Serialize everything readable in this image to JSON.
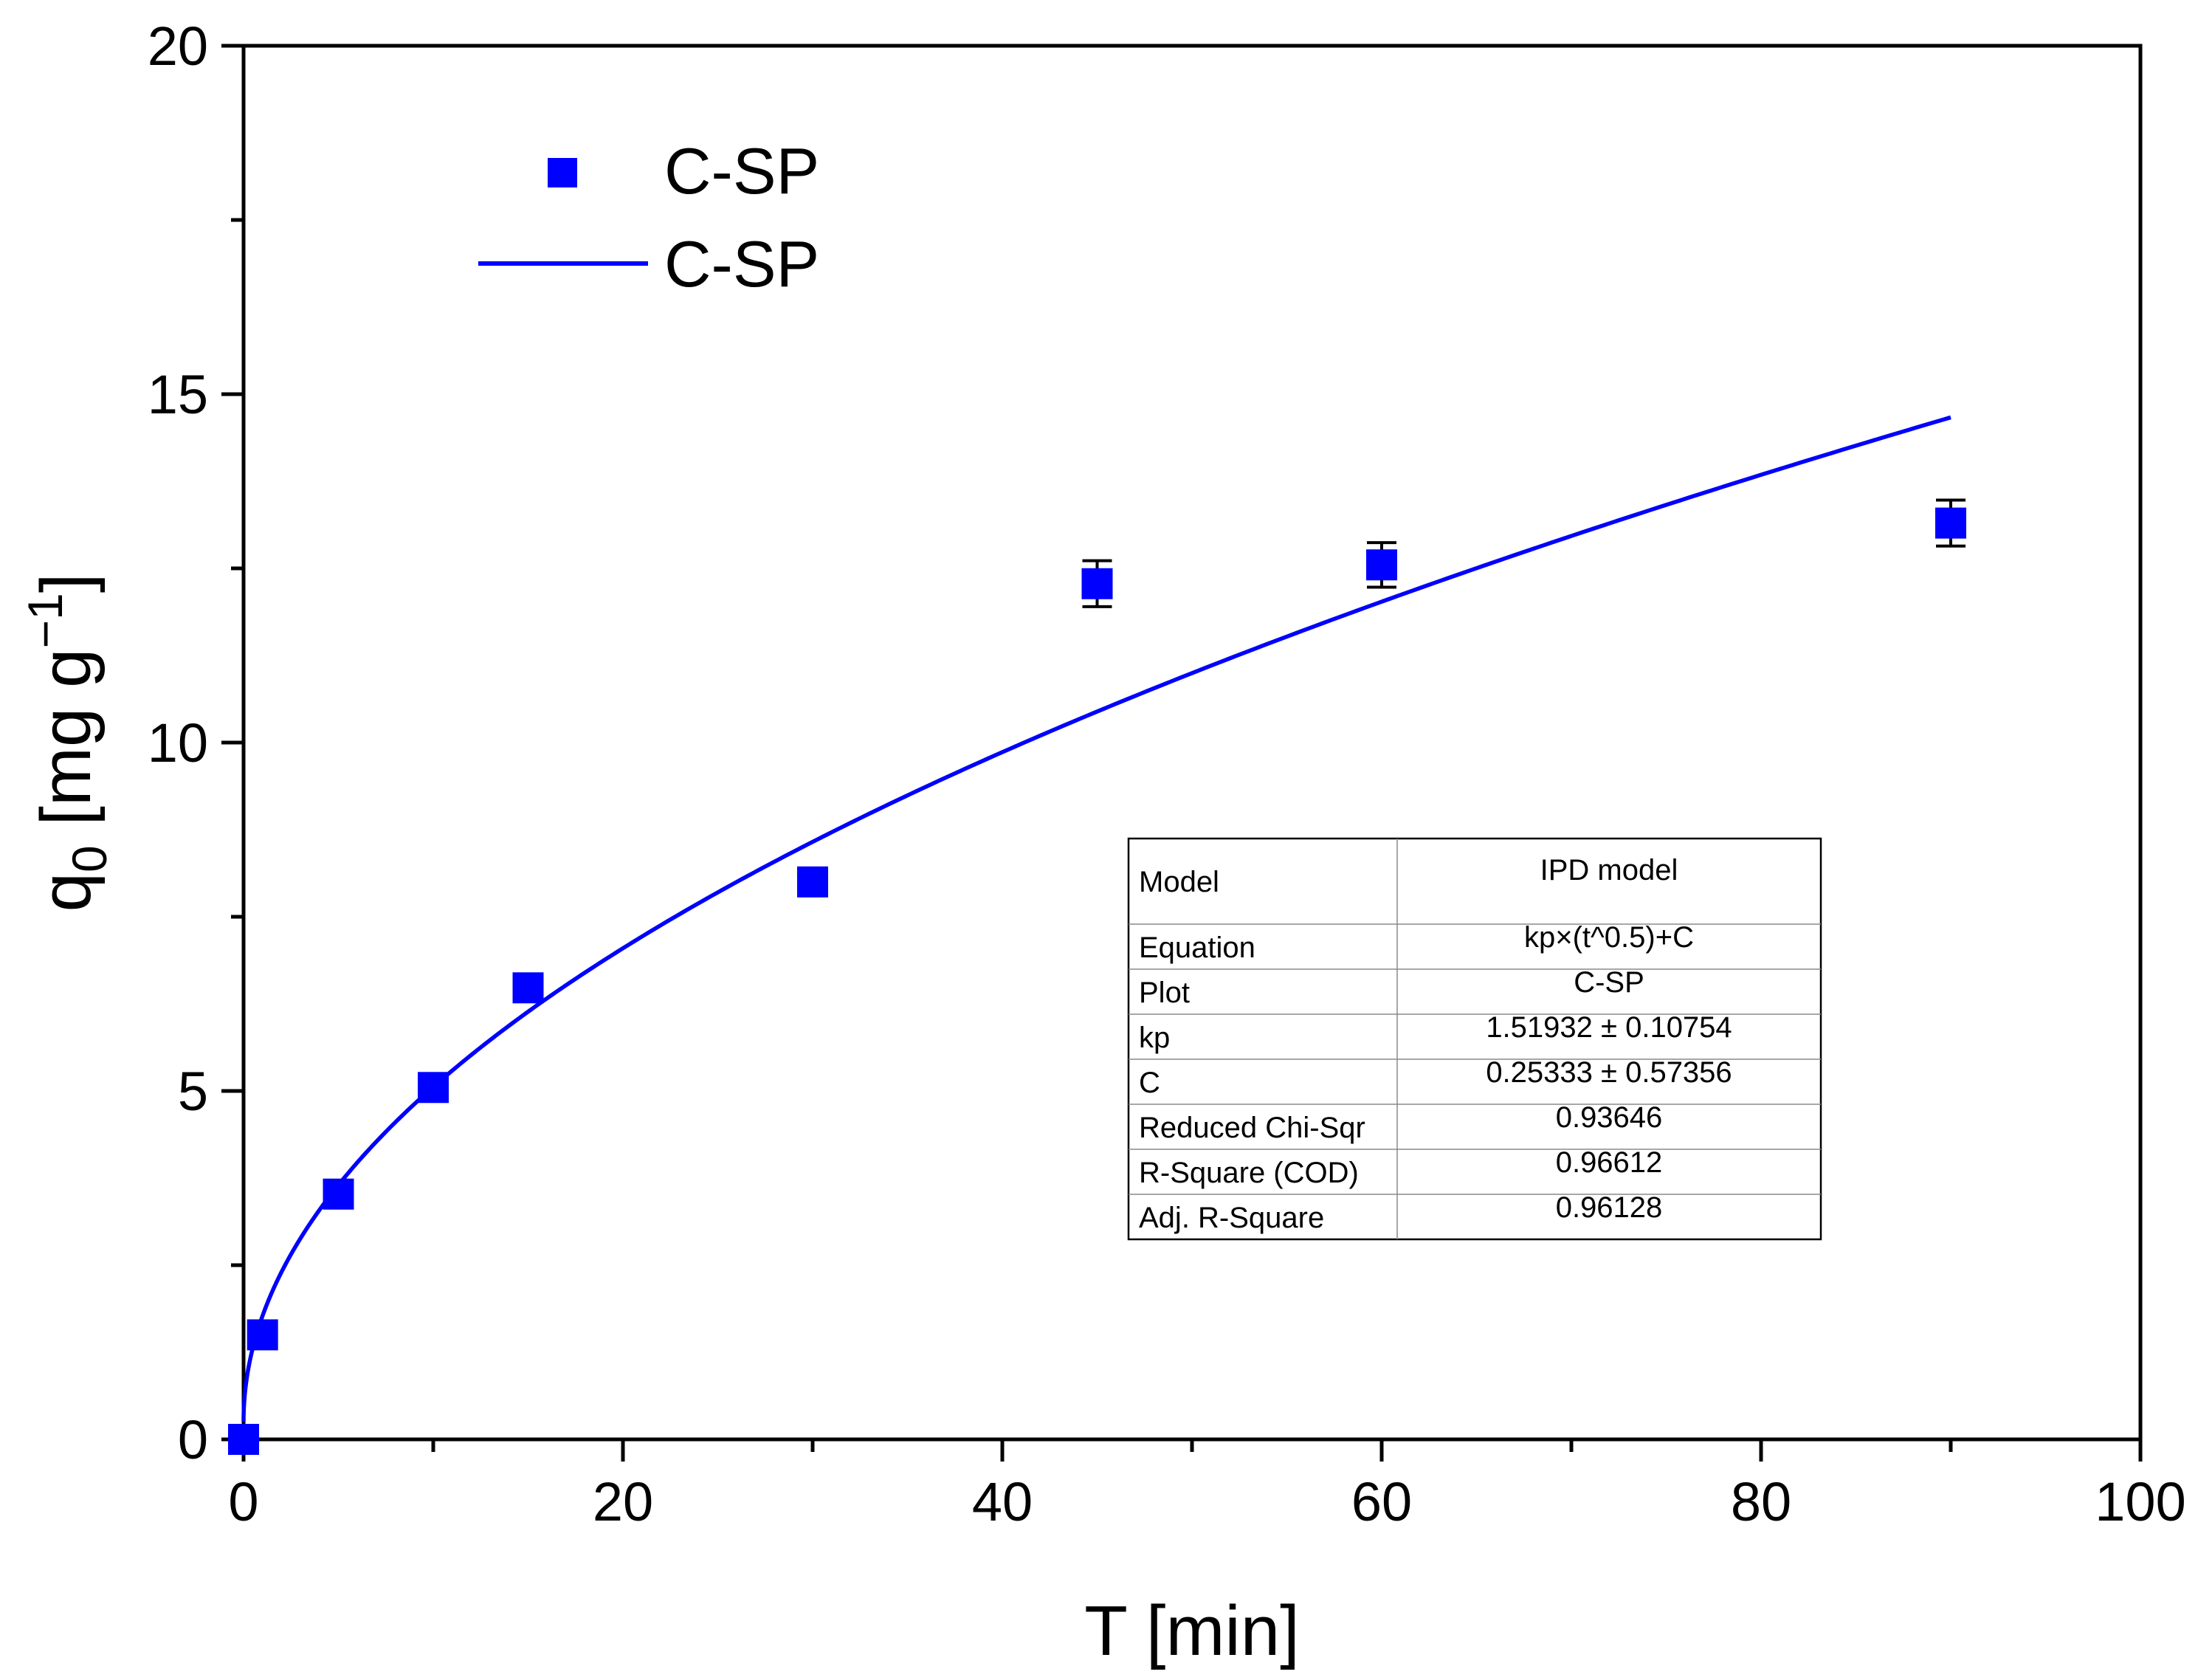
{
  "chart_data": {
    "type": "scatter",
    "title": "",
    "xlabel": "T [min]",
    "ylabel": {
      "base": "q",
      "sub": "0",
      "units_open": " [mg g",
      "sup": "−1",
      "units_close": "]"
    },
    "xlim": [
      0,
      100
    ],
    "ylim": [
      0,
      20
    ],
    "x_ticks": [
      0,
      20,
      40,
      60,
      80,
      100
    ],
    "x_minor_ticks": [
      10,
      30,
      50,
      70,
      90
    ],
    "y_ticks": [
      0,
      5,
      10,
      15,
      20
    ],
    "y_minor_ticks": [
      2.5,
      7.5,
      12.5,
      17.5
    ],
    "grid": false,
    "legend_position": "top-left",
    "series": [
      {
        "name": "C-SP",
        "kind": "points",
        "marker": "square",
        "color": "#0000ff",
        "x": [
          0,
          1,
          5,
          10,
          15,
          30,
          45,
          60,
          90
        ],
        "y": [
          0,
          1.5,
          3.52,
          5.05,
          6.48,
          8.0,
          12.28,
          12.55,
          13.15
        ],
        "err": [
          0,
          0,
          0,
          0,
          0,
          0,
          0.33,
          0.32,
          0.33
        ]
      },
      {
        "name": "C-SP",
        "kind": "fit_line",
        "color": "#0000ff",
        "model": {
          "kp": 1.51932,
          "C": 0.25333,
          "exponent": 0.5
        },
        "x_range": [
          0,
          90
        ]
      }
    ],
    "fit_table": {
      "rows": [
        [
          "Model",
          "IPD model"
        ],
        [
          "Equation",
          "kp×(t^0.5)+C"
        ],
        [
          "Plot",
          "C-SP"
        ],
        [
          "kp",
          "1.51932 ± 0.10754"
        ],
        [
          "C",
          "0.25333 ± 0.57356"
        ],
        [
          "Reduced Chi-Sqr",
          "0.93646"
        ],
        [
          "R-Square (COD)",
          "0.96612"
        ],
        [
          "Adj. R-Square",
          "0.96128"
        ]
      ]
    }
  }
}
